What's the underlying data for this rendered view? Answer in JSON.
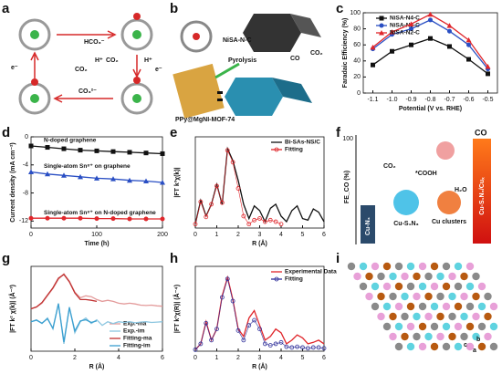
{
  "figure": {
    "panel_labels": [
      "a",
      "b",
      "c",
      "d",
      "e",
      "f",
      "g",
      "h",
      "i"
    ],
    "panel_a": {
      "labels": [
        "HCO₃⁻",
        "CO₂",
        "e⁻",
        "H⁺",
        "CO₂",
        "H⁺",
        "e⁻",
        "CO₃²⁻"
      ]
    },
    "panel_b": {
      "labels": [
        "NiSA-N-C",
        "PPy@MgNI-MOF-74",
        "Pyrolysis",
        "CO₂",
        "CO"
      ]
    },
    "panel_f": {
      "axis_label": "FE_CO (%)",
      "axis_tick": "100",
      "labels": [
        "CO₂",
        "*COOH",
        "Cu-S₁N₃",
        "Cu clusters",
        "H₂O",
        "Cu-N₄",
        "CO",
        "Cu-S₁N₃/Cuₓ"
      ]
    },
    "panel_i": {
      "axes": [
        "a",
        "b",
        "c"
      ]
    }
  },
  "chart_data": [
    {
      "type": "line",
      "x_label": "Potential (V vs. RHE)",
      "y_label": "Faradaic Efficiency (%)",
      "categories": [
        "-1.1",
        "-1.0",
        "-0.9",
        "-0.8",
        "-0.7",
        "-0.6",
        "-0.5"
      ],
      "ylim": [
        0,
        100
      ],
      "yticks": [
        0,
        20,
        40,
        60,
        80,
        100
      ],
      "legend": "upper center",
      "series": [
        {
          "name": "NiSA-N4-C",
          "color": "#111111",
          "marker": "square",
          "values": [
            35,
            52,
            60,
            68,
            58,
            42,
            24
          ]
        },
        {
          "name": "NiSA-N3-C",
          "color": "#2a4fc4",
          "marker": "circle",
          "values": [
            55,
            73,
            80,
            91,
            77,
            60,
            30
          ]
        },
        {
          "name": "NiSA-N2-C",
          "color": "#e0262b",
          "marker": "triangle",
          "values": [
            57,
            76,
            86,
            98,
            84,
            66,
            33
          ]
        }
      ]
    },
    {
      "type": "line",
      "x_label": "Time (h)",
      "y_label": "Current density (mA cm⁻²)",
      "x": [
        0,
        25,
        50,
        75,
        100,
        125,
        150,
        175,
        200
      ],
      "xlim": [
        0,
        200
      ],
      "xticks": [
        0,
        100,
        200
      ],
      "ylim": [
        -13,
        0
      ],
      "yticks": [
        0,
        -4,
        -8,
        -12
      ],
      "legend": "inline",
      "series": [
        {
          "name": "Single-atom Sn⁸⁺ on N-doped graphene",
          "color": "#e0262b",
          "marker": "circle",
          "values": [
            -11.6,
            -11.6,
            -11.6,
            -11.6,
            -11.65,
            -11.65,
            -11.7,
            -11.7,
            -11.7
          ]
        },
        {
          "name": "Single-atom Sn⁸⁺ on graphene",
          "color": "#2a4fc4",
          "marker": "triangle",
          "values": [
            -5.0,
            -5.3,
            -5.5,
            -5.7,
            -5.9,
            -6.0,
            -6.2,
            -6.3,
            -6.5
          ]
        },
        {
          "name": "N-doped graphene",
          "color": "#111111",
          "marker": "square",
          "values": [
            -1.3,
            -1.5,
            -1.7,
            -1.9,
            -2.0,
            -2.1,
            -2.2,
            -2.3,
            -2.4
          ]
        }
      ]
    },
    {
      "type": "line",
      "x_label": "R (Å)",
      "y_label": "|FT k³χ(k)|",
      "x": [
        0,
        0.25,
        0.5,
        0.75,
        1,
        1.25,
        1.5,
        1.75,
        2,
        2.25,
        2.5,
        2.75,
        3,
        3.25,
        3.5,
        3.75,
        4,
        4.25,
        4.5,
        4.75,
        5,
        5.25,
        5.5,
        5.75,
        6
      ],
      "xlim": [
        0,
        6
      ],
      "xticks": [
        0,
        1,
        2,
        3,
        4,
        5,
        6
      ],
      "ylim": [
        0,
        1.15
      ],
      "legend": "upper right",
      "series": [
        {
          "name": "Bi-SAs-NS/C",
          "color": "#111111",
          "values": [
            0.05,
            0.35,
            0.15,
            0.3,
            0.55,
            0.3,
            1.0,
            0.85,
            0.6,
            0.3,
            0.12,
            0.28,
            0.22,
            0.08,
            0.25,
            0.3,
            0.15,
            0.08,
            0.22,
            0.28,
            0.12,
            0.1,
            0.24,
            0.2,
            0.08
          ]
        },
        {
          "name": "Fitting",
          "color": "#e0262b",
          "marker": "open-circle",
          "values": [
            0.05,
            0.33,
            0.14,
            0.3,
            0.53,
            0.32,
            0.98,
            0.83,
            0.5,
            0.15,
            0.05,
            0.1,
            0.12,
            0.08,
            0.1,
            0.08,
            0.05,
            null,
            null,
            null,
            null,
            null,
            null,
            null,
            null
          ]
        }
      ]
    },
    {
      "type": "line",
      "x_label": "R (Å)",
      "y_label": "|FT k² χ(k)| (Å⁻³)",
      "x": [
        0,
        0.25,
        0.5,
        0.75,
        1,
        1.25,
        1.5,
        1.75,
        2,
        2.25,
        2.5,
        2.75,
        3,
        3.25,
        3.5,
        3.75,
        4,
        4.25,
        4.5,
        4.75,
        5,
        5.25,
        5.5,
        5.75,
        6
      ],
      "xlim": [
        0,
        6
      ],
      "xticks": [
        0,
        2,
        4,
        6
      ],
      "ylim": [
        -1.1,
        1.2
      ],
      "legend": "lower right",
      "series": [
        {
          "name": "Exp.-ma",
          "color": "#e39a9a",
          "values": [
            0.05,
            0.1,
            0.2,
            0.4,
            0.6,
            0.85,
            1.0,
            0.8,
            0.5,
            0.35,
            0.4,
            0.38,
            0.3,
            0.25,
            0.28,
            0.25,
            0.2,
            0.18,
            0.2,
            0.18,
            0.15,
            0.14,
            0.15,
            0.13,
            0.12
          ]
        },
        {
          "name": "Exp.-im",
          "color": "#8cc6e0",
          "values": [
            -0.3,
            -0.25,
            -0.35,
            -0.2,
            -0.5,
            0.2,
            -0.9,
            0.1,
            -0.6,
            -0.3,
            -0.2,
            -0.35,
            -0.25,
            -0.4,
            -0.3,
            -0.35,
            -0.3,
            -0.32,
            -0.3,
            -0.33,
            -0.31,
            -0.3,
            -0.32,
            -0.31,
            -0.3
          ]
        },
        {
          "name": "Fitting-ma",
          "color": "#c03030",
          "values": [
            0.05,
            0.1,
            0.22,
            0.42,
            0.62,
            0.88,
            0.98,
            0.78,
            0.48,
            0.3,
            0.3,
            0.28,
            0.25,
            null,
            null,
            null,
            null,
            null,
            null,
            null,
            null,
            null,
            null,
            null,
            null
          ]
        },
        {
          "name": "Fitting-im",
          "color": "#3a9fd0",
          "values": [
            -0.3,
            -0.26,
            -0.34,
            -0.22,
            -0.48,
            0.18,
            -0.85,
            0.08,
            -0.55,
            -0.28,
            -0.25,
            -0.32,
            -0.28,
            null,
            null,
            null,
            null,
            null,
            null,
            null,
            null,
            null,
            null,
            null,
            null
          ]
        }
      ]
    },
    {
      "type": "line",
      "x_label": "R (Å)",
      "y_label": "|FT k³χ(R)| (Å⁻⁴)",
      "x": [
        0,
        0.25,
        0.5,
        0.75,
        1,
        1.25,
        1.5,
        1.75,
        2,
        2.25,
        2.5,
        2.75,
        3,
        3.25,
        3.5,
        3.75,
        4,
        4.25,
        4.5,
        4.75,
        5,
        5.25,
        5.5,
        5.75,
        6
      ],
      "xlim": [
        0,
        6
      ],
      "xticks": [
        0,
        1,
        2,
        3,
        4,
        5,
        6
      ],
      "ylim": [
        0,
        1.15
      ],
      "legend": "upper right",
      "series": [
        {
          "name": "Experimental Data",
          "color": "#e0262b",
          "values": [
            0.02,
            0.1,
            0.4,
            0.15,
            0.3,
            0.75,
            1.0,
            0.7,
            0.3,
            0.2,
            0.45,
            0.55,
            0.35,
            0.15,
            0.2,
            0.3,
            0.25,
            0.1,
            0.15,
            0.22,
            0.18,
            0.1,
            0.12,
            0.15,
            0.1
          ]
        },
        {
          "name": "Fitting",
          "color": "#2f2f9a",
          "marker": "open-circle",
          "values": [
            0.02,
            0.1,
            0.38,
            0.15,
            0.3,
            0.73,
            0.98,
            0.68,
            0.28,
            0.15,
            0.35,
            0.42,
            0.3,
            0.1,
            0.08,
            0.1,
            0.12,
            0.06,
            0.05,
            0.06,
            0.05,
            0.04,
            0.05,
            0.05,
            0.04
          ]
        }
      ]
    }
  ]
}
